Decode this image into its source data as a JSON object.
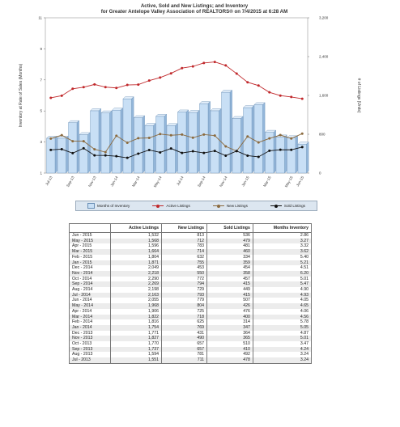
{
  "chart_data": {
    "type": "bar",
    "title_line1": "Active, Sold and New Listings; and Inventory",
    "title_line2": "for Greater Antelope Valley Association of REALTORS® on 7/4/2015 at 6:28 AM",
    "ylabel_left": "Inventory at Rate of Sales (Months)",
    "ylabel_right": "# of Listings (Units)",
    "left_ticks": [
      "1",
      "3",
      "5",
      "7",
      "9",
      "11"
    ],
    "left_ylim": [
      1,
      11
    ],
    "right_ticks": [
      "0",
      "800",
      "1,600",
      "2,400",
      "3,200"
    ],
    "right_ylim": [
      0,
      3200
    ],
    "categories": [
      "Jul-13",
      "Aug-13",
      "Sep-13",
      "Oct-13",
      "Nov-13",
      "Dec-13",
      "Jan-14",
      "Feb-14",
      "Mar-14",
      "Apr-14",
      "May-14",
      "Jun-14",
      "Jul-14",
      "Aug-14",
      "Sep-14",
      "Oct-14",
      "Nov-14",
      "Dec-14",
      "Jan-15",
      "Feb-15",
      "Mar-15",
      "Apr-15",
      "May-15",
      "Jun-15"
    ],
    "x_tick_labels": [
      "Jul-13",
      "",
      "Sep-13",
      "",
      "Nov-13",
      "",
      "Jan-14",
      "",
      "Mar-14",
      "",
      "May-14",
      "",
      "Jul-14",
      "",
      "Sep-14",
      "",
      "Nov-14",
      "",
      "Jan-15",
      "",
      "Mar-15",
      "",
      "May-15",
      "Jun-15"
    ],
    "series": [
      {
        "name": "Months of Inventory",
        "kind": "bar",
        "axis": "left",
        "color": "#c8dff5",
        "values": [
          3.24,
          3.24,
          4.24,
          3.47,
          5.01,
          4.87,
          5.05,
          5.78,
          4.56,
          4.06,
          4.65,
          4.05,
          4.93,
          4.9,
          5.47,
          5.01,
          6.2,
          4.51,
          5.21,
          5.4,
          3.62,
          3.32,
          3.27,
          2.86
        ]
      },
      {
        "name": "Active Listings",
        "kind": "line",
        "axis": "right",
        "color": "#c0282b",
        "values": [
          1551,
          1594,
          1737,
          1770,
          1827,
          1771,
          1754,
          1816,
          1822,
          1906,
          1968,
          2055,
          2163,
          2198,
          2269,
          2290,
          2218,
          2049,
          1871,
          1804,
          1664,
          1596,
          1568,
          1532
        ]
      },
      {
        "name": "New Listings",
        "kind": "line",
        "axis": "right",
        "color": "#8b6a3e",
        "values": [
          711,
          781,
          657,
          657,
          490,
          431,
          769,
          625,
          718,
          725,
          804,
          779,
          793,
          729,
          794,
          772,
          550,
          453,
          755,
          632,
          714,
          783,
          712,
          813
        ]
      },
      {
        "name": "Sold Listings",
        "kind": "line",
        "axis": "right",
        "color": "#111111",
        "values": [
          478,
          492,
          410,
          510,
          365,
          364,
          347,
          314,
          400,
          476,
          426,
          507,
          415,
          449,
          415,
          457,
          358,
          454,
          359,
          334,
          460,
          481,
          479,
          536
        ]
      }
    ],
    "legend_position": "bottom"
  },
  "table": {
    "headers": [
      "",
      "Active Listings",
      "New Listings",
      "Sold Listings",
      "Months Inventory"
    ],
    "rows": [
      [
        "Jun - 2015",
        "1,532",
        "813",
        "536",
        "2.86"
      ],
      [
        "May - 2015",
        "1,568",
        "712",
        "479",
        "3.27"
      ],
      [
        "Apr - 2015",
        "1,596",
        "783",
        "481",
        "3.32"
      ],
      [
        "Mar - 2015",
        "1,664",
        "714",
        "460",
        "3.62"
      ],
      [
        "Feb - 2015",
        "1,804",
        "632",
        "334",
        "5.40"
      ],
      [
        "Jan - 2015",
        "1,871",
        "755",
        "359",
        "5.21"
      ],
      [
        "Dec - 2014",
        "2,049",
        "453",
        "454",
        "4.51"
      ],
      [
        "Nov - 2014",
        "2,218",
        "550",
        "358",
        "6.20"
      ],
      [
        "Oct - 2014",
        "2,290",
        "772",
        "457",
        "5.01"
      ],
      [
        "Sep - 2014",
        "2,269",
        "794",
        "415",
        "5.47"
      ],
      [
        "Aug - 2014",
        "2,198",
        "729",
        "449",
        "4.90"
      ],
      [
        "Jul - 2014",
        "2,163",
        "793",
        "415",
        "4.93"
      ],
      [
        "Jun - 2014",
        "2,055",
        "779",
        "507",
        "4.05"
      ],
      [
        "May - 2014",
        "1,968",
        "804",
        "426",
        "4.65"
      ],
      [
        "Apr - 2014",
        "1,906",
        "725",
        "476",
        "4.06"
      ],
      [
        "Mar - 2014",
        "1,822",
        "718",
        "400",
        "4.56"
      ],
      [
        "Feb - 2014",
        "1,816",
        "625",
        "314",
        "5.78"
      ],
      [
        "Jan - 2014",
        "1,754",
        "769",
        "347",
        "5.05"
      ],
      [
        "Dec - 2013",
        "1,771",
        "431",
        "364",
        "4.87"
      ],
      [
        "Nov - 2013",
        "1,827",
        "490",
        "365",
        "5.01"
      ],
      [
        "Oct - 2013",
        "1,770",
        "657",
        "510",
        "3.47"
      ],
      [
        "Sep - 2013",
        "1,737",
        "657",
        "410",
        "4.24"
      ],
      [
        "Aug - 2013",
        "1,594",
        "781",
        "492",
        "3.24"
      ],
      [
        "Jul - 2013",
        "1,551",
        "711",
        "478",
        "3.24"
      ]
    ]
  }
}
